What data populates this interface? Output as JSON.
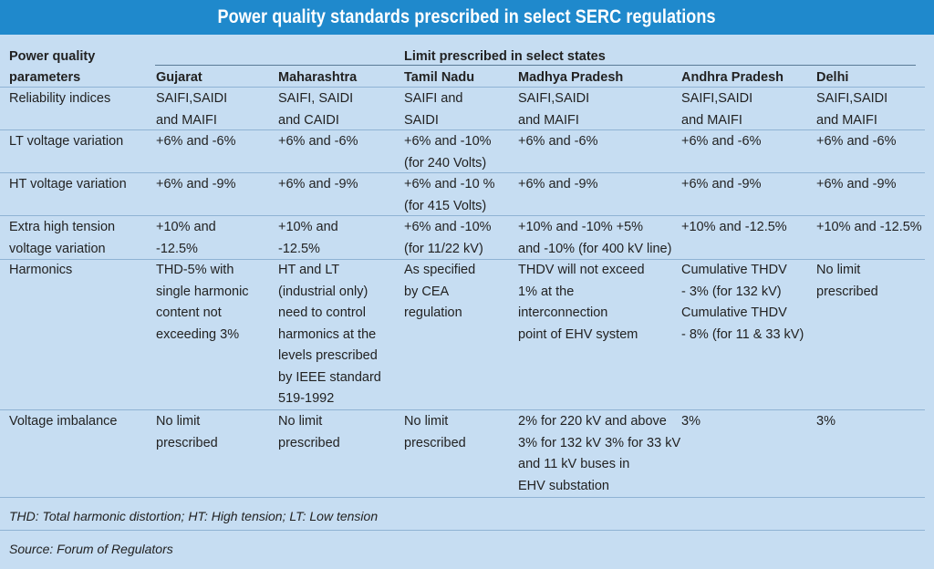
{
  "title": "Power quality standards prescribed in select SERC regulations",
  "header": {
    "param_label_line1": "Power quality",
    "param_label_line2": "parameters",
    "limit_label": "Limit prescribed in select states",
    "states": [
      "Gujarat",
      "Maharashtra",
      "Tamil Nadu",
      "Madhya Pradesh",
      "Andhra Pradesh",
      "Delhi"
    ]
  },
  "rows": [
    {
      "parameter": "Reliability indices",
      "values": [
        "SAIFI,SAIDI\nand MAIFI",
        "SAIFI, SAIDI\nand CAIDI",
        "SAIFI and\nSAIDI",
        "SAIFI,SAIDI\nand MAIFI",
        "SAIFI,SAIDI\nand MAIFI",
        "SAIFI,SAIDI\nand MAIFI"
      ]
    },
    {
      "parameter": "LT voltage variation",
      "values": [
        "+6% and -6%",
        "+6% and -6%",
        "+6% and -10%\n(for 240 Volts)",
        "+6% and -6%",
        "+6% and -6%",
        "+6% and -6%"
      ]
    },
    {
      "parameter": "HT voltage variation",
      "values": [
        "+6% and -9%",
        "+6% and -9%",
        "+6% and -10 %\n(for 415 Volts)",
        "+6% and -9%",
        "+6% and -9%",
        "+6% and -9%"
      ]
    },
    {
      "parameter": "Extra high tension\nvoltage variation",
      "values": [
        "+10% and\n-12.5%",
        "+10% and\n-12.5%",
        "+6% and -10%\n(for  11/22 kV)",
        "+10% and -10% +5%\nand -10% (for 400 kV line)",
        "+10% and -12.5%",
        "+10% and -12.5%"
      ]
    },
    {
      "parameter": "Harmonics",
      "values": [
        "THD-5% with\nsingle harmonic\ncontent not\nexceeding 3%",
        "HT and LT\n(industrial only)\nneed to control\nharmonics at the\nlevels prescribed\nby IEEE standard\n519-1992",
        "As specified\nby CEA\nregulation",
        "THDV will not exceed\n1% at the\ninterconnection\npoint of EHV system",
        "Cumulative THDV\n- 3% (for 132 kV)\nCumulative THDV\n- 8% (for 11 & 33 kV)",
        "No limit\nprescribed"
      ]
    },
    {
      "parameter": "Voltage imbalance",
      "values": [
        "No limit\nprescribed",
        "No limit\nprescribed",
        "No limit\nprescribed",
        "2% for 220 kV and above\n3% for 132 kV 3% for 33 kV\nand 11 kV buses in\nEHV substation",
        "3%",
        "3%"
      ]
    }
  ],
  "footnote": "THD: Total harmonic distortion; HT: High tension; LT: Low tension",
  "source": "Source: Forum of Regulators"
}
